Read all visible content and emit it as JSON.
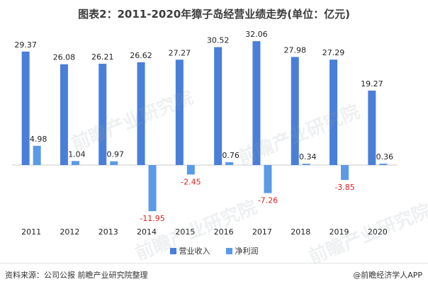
{
  "chart_data": {
    "type": "bar",
    "title": "图表2：2011-2020年獐子岛经营业绩走势(单位：亿元)",
    "categories": [
      "2011",
      "2012",
      "2013",
      "2014",
      "2015",
      "2016",
      "2017",
      "2018",
      "2019",
      "2020"
    ],
    "series": [
      {
        "name": "营业收入",
        "values": [
          29.37,
          26.08,
          26.21,
          26.62,
          27.27,
          30.52,
          32.06,
          27.98,
          27.29,
          19.27
        ],
        "labels": [
          "29.37",
          "26.08",
          "26.21",
          "26.62",
          "27.27",
          "30.52",
          "32.06",
          "27.98",
          "27.29",
          "19.27"
        ],
        "color": "#4a7fd9"
      },
      {
        "name": "净利润",
        "values": [
          4.98,
          1.04,
          0.97,
          -11.95,
          -2.45,
          0.76,
          -7.26,
          0.34,
          -3.85,
          0.36
        ],
        "labels": [
          "4.98",
          "1.04",
          "0.97",
          "-11.95",
          "-2.45",
          "0.76",
          "-7.26",
          "0.34",
          "-3.85",
          "0.36"
        ],
        "color": "#5b9ae6"
      }
    ],
    "label_color_positive": "#222222",
    "label_color_negative": "#e02020",
    "ylim": [
      -12,
      33
    ],
    "grid": false,
    "legend_position": "bottom"
  },
  "watermark": "前瞻产业研究院",
  "footer": {
    "source": "资料来源：公司公报 前瞻产业研究院整理",
    "credit": "@前瞻经济学人APP"
  }
}
